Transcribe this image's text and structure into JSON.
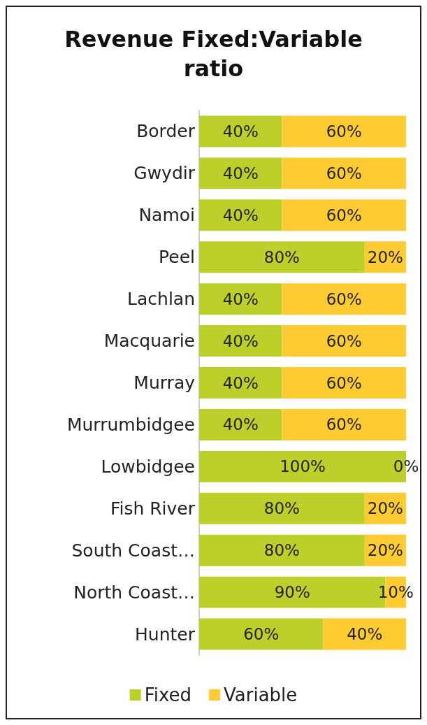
{
  "chart_data": {
    "type": "bar",
    "orientation": "horizontal",
    "stacked": true,
    "title": "Revenue Fixed:Variable\nratio",
    "categories": [
      "Border",
      "Gwydir",
      "Namoi",
      "Peel",
      "Lachlan",
      "Macquarie",
      "Murray",
      "Murrumbidgee",
      "Lowbidgee",
      "Fish River",
      "South Coast…",
      "North Coast…",
      "Hunter"
    ],
    "series": [
      {
        "name": "Fixed",
        "color": "#bccf2b",
        "values": [
          40,
          40,
          40,
          80,
          40,
          40,
          40,
          40,
          100,
          80,
          80,
          90,
          60
        ],
        "value_labels": [
          "40%",
          "40%",
          "40%",
          "80%",
          "40%",
          "40%",
          "40%",
          "40%",
          "100%",
          "80%",
          "80%",
          "90%",
          "60%"
        ]
      },
      {
        "name": "Variable",
        "color": "#ffcb32",
        "values": [
          60,
          60,
          60,
          20,
          60,
          60,
          60,
          60,
          0,
          20,
          20,
          10,
          40
        ],
        "value_labels": [
          "60%",
          "60%",
          "60%",
          "20%",
          "60%",
          "60%",
          "60%",
          "60%",
          "0%",
          "20%",
          "20%",
          "10%",
          "40%"
        ]
      }
    ],
    "xlim": [
      0,
      100
    ],
    "tick_labels": "y",
    "legend": "bottom"
  }
}
